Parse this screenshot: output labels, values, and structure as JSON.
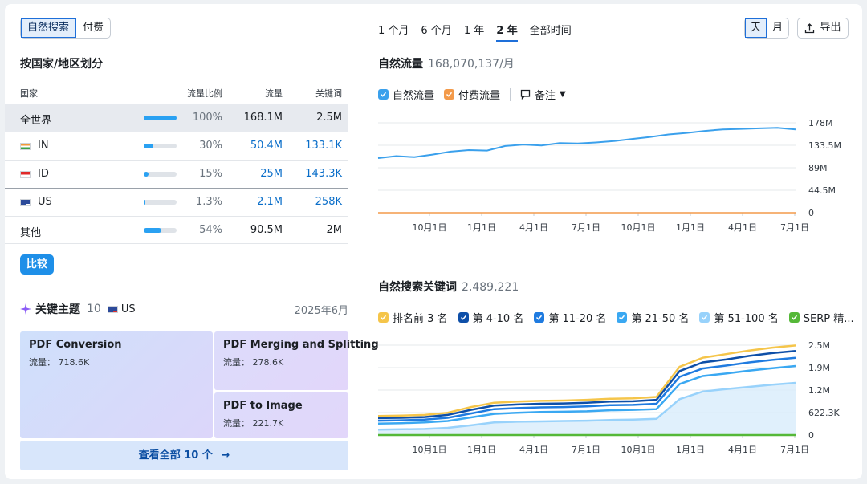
{
  "toggle": {
    "organic": "自然搜索",
    "paid": "付费"
  },
  "country_section": {
    "title": "按国家/地区划分",
    "headers": {
      "country": "国家",
      "share": "流量比例",
      "traffic": "流量",
      "keywords": "关键词"
    },
    "rows": [
      {
        "name": "全世界",
        "share": "100%",
        "share_value": 1.0,
        "traffic": "168.1M",
        "keywords": "2.5M"
      },
      {
        "name": "IN",
        "share": "30%",
        "share_value": 0.3,
        "traffic": "50.4M",
        "keywords": "133.1K"
      },
      {
        "name": "ID",
        "share": "15%",
        "share_value": 0.15,
        "traffic": "25M",
        "keywords": "143.3K"
      },
      {
        "name": "US",
        "share": "1.3%",
        "share_value": 0.013,
        "traffic": "2.1M",
        "keywords": "258K"
      },
      {
        "name": "其他",
        "share": "54%",
        "share_value": 0.54,
        "traffic": "90.5M",
        "keywords": "2M"
      }
    ],
    "compare_button": "比较"
  },
  "key_topics": {
    "title": "关键主题",
    "count": "10",
    "country": "US",
    "date": "2025年6月",
    "traffic_label": "流量：",
    "tiles": [
      {
        "name": "PDF Conversion",
        "traffic": "718.6K"
      },
      {
        "name": "PDF Merging and Splitting",
        "traffic": "278.6K"
      },
      {
        "name": "PDF to Image",
        "traffic": "221.7K"
      }
    ],
    "view_all": "查看全部 10 个"
  },
  "periods": [
    "1 个月",
    "6 个月",
    "1 年",
    "2 年",
    "全部时间"
  ],
  "active_period": "2 年",
  "granularity": {
    "day": "天",
    "month": "月"
  },
  "export_label": "导出",
  "traffic_chart": {
    "title": "自然流量",
    "value": "168,070,137/月",
    "legend": {
      "organic": "自然流量",
      "paid": "付费流量",
      "notes": "备注"
    }
  },
  "keywords_chart": {
    "title": "自然搜索关键词",
    "value": "2,489,221",
    "legend": [
      "排名前 3 名",
      "第 4-10 名",
      "第 11-20 名",
      "第 21-50 名",
      "第 51-100 名",
      "SERP 精..."
    ]
  },
  "colors": {
    "accent": "#1e6fd9",
    "organic": "#3aa0ec",
    "paid": "#f39a4a",
    "top3": "#f5c54a",
    "pos4_10": "#0e4fa8",
    "pos11_20": "#1f7be0",
    "pos21_50": "#3aa8f2",
    "pos51_100": "#98d2fb",
    "serp": "#55b838"
  },
  "chart_data": [
    {
      "type": "line",
      "title": "自然流量",
      "x_ticks": [
        "10月1日",
        "1月1日",
        "4月1日",
        "7月1日",
        "10月1日",
        "1月1日",
        "4月1日",
        "7月1日"
      ],
      "y_ticks": [
        "0",
        "44.5M",
        "89M",
        "133.5M",
        "178M"
      ],
      "ylim": [
        0,
        178000000
      ],
      "series": [
        {
          "name": "自然流量",
          "values": [
            108000000,
            112000000,
            110000000,
            115000000,
            121000000,
            124000000,
            123000000,
            132000000,
            135000000,
            133000000,
            138000000,
            137000000,
            139000000,
            142000000,
            146000000,
            150000000,
            155000000,
            158000000,
            162000000,
            165000000,
            166000000,
            167000000,
            168000000,
            165000000
          ]
        },
        {
          "name": "付费流量",
          "values": [
            0,
            0,
            0,
            0,
            0,
            0,
            0,
            0,
            0,
            0,
            0,
            0,
            0,
            0,
            0,
            0,
            0,
            0,
            0,
            0,
            0,
            0,
            0,
            0
          ]
        }
      ]
    },
    {
      "type": "area",
      "title": "自然搜索关键词",
      "x_ticks": [
        "10月1日",
        "1月1日",
        "4月1日",
        "7月1日",
        "10月1日",
        "1月1日",
        "4月1日",
        "7月1日"
      ],
      "y_ticks": [
        "0",
        "622.3K",
        "1.2M",
        "1.9M",
        "2.5M"
      ],
      "ylim": [
        0,
        2500000
      ],
      "series": [
        {
          "name": "排名前 3 名",
          "values": [
            530000,
            540000,
            560000,
            620000,
            780000,
            900000,
            930000,
            950000,
            960000,
            980000,
            1010000,
            1020000,
            1060000,
            1900000,
            2150000,
            2250000,
            2350000,
            2430000,
            2490000
          ]
        },
        {
          "name": "第 4-10 名",
          "values": [
            470000,
            480000,
            500000,
            560000,
            700000,
            820000,
            850000,
            870000,
            880000,
            900000,
            930000,
            940000,
            980000,
            1780000,
            2020000,
            2100000,
            2200000,
            2280000,
            2340000
          ]
        },
        {
          "name": "第 11-20 名",
          "values": [
            400000,
            410000,
            430000,
            480000,
            600000,
            720000,
            750000,
            770000,
            780000,
            800000,
            830000,
            840000,
            870000,
            1620000,
            1850000,
            1930000,
            2020000,
            2090000,
            2150000
          ]
        },
        {
          "name": "第 21-50 名",
          "values": [
            320000,
            330000,
            350000,
            390000,
            490000,
            590000,
            620000,
            640000,
            650000,
            660000,
            690000,
            700000,
            720000,
            1420000,
            1640000,
            1710000,
            1790000,
            1860000,
            1920000
          ]
        },
        {
          "name": "第 51-100 名",
          "values": [
            150000,
            160000,
            170000,
            200000,
            270000,
            350000,
            370000,
            380000,
            390000,
            400000,
            420000,
            430000,
            450000,
            1000000,
            1210000,
            1280000,
            1340000,
            1400000,
            1450000
          ]
        },
        {
          "name": "SERP 精...",
          "values": [
            0,
            0,
            0,
            0,
            0,
            0,
            0,
            0,
            0,
            0,
            0,
            0,
            0,
            0,
            0,
            0,
            0,
            0,
            0
          ]
        }
      ]
    }
  ]
}
